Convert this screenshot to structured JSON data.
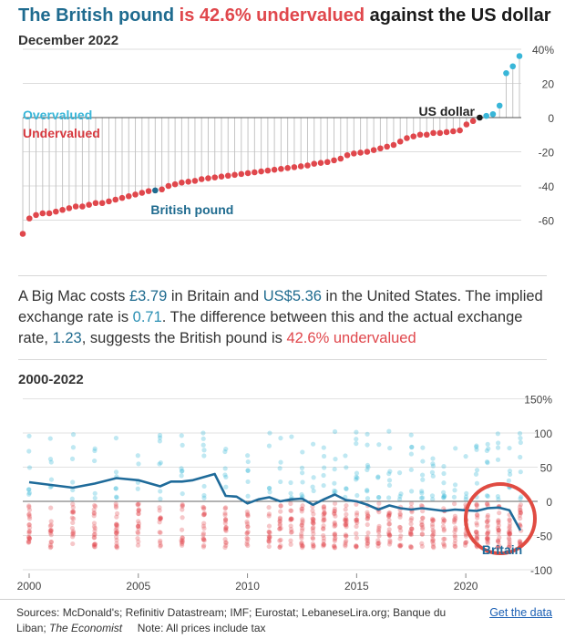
{
  "header": {
    "title_part1": "The British pound",
    "title_part2": "is 42.6% undervalued",
    "title_part3": "against the US dollar",
    "subtitle": "December 2022"
  },
  "description": {
    "p1": "A Big Mac costs ",
    "price_uk": "£3.79",
    "p2": " in Britain and ",
    "price_us": "US$5.36",
    "p3": " in the United States. The implied exchange rate is ",
    "implied_rate": "0.71",
    "p4": ". The difference between this and the actual exchange rate, ",
    "actual_rate": "1.23",
    "p5": ", suggests the British pound is ",
    "valuation": "42.6% undervalued"
  },
  "footer": {
    "sources_text": "Sources: McDonald's; Refinitiv Datastream; IMF; Eurostat; LebaneseLira.org; Banque du Liban; ",
    "economist": "The Economist",
    "note": "Note: All prices include tax",
    "get_data": "Get the data"
  },
  "colors": {
    "over": "#39b6d8",
    "under": "#e0474c",
    "highlight": "#1f6b8f",
    "us": "#1a1a1a",
    "over_label": "#39b6d8",
    "under_label": "#d7393f",
    "britain_line": "#1f6b9a",
    "circle": "#e04b42"
  },
  "chart_data": [
    {
      "type": "scatter",
      "title": "December 2022",
      "ylim": [
        -70,
        45
      ],
      "yticks": [
        {
          "value": 40,
          "label": "40%"
        },
        {
          "value": 20,
          "label": "20"
        },
        {
          "value": 0,
          "label": "0"
        },
        {
          "value": -20,
          "label": "-20"
        },
        {
          "value": -40,
          "label": "-40"
        },
        {
          "value": -60,
          "label": "-60"
        }
      ],
      "grid": true,
      "labels": {
        "overvalued": "Overvalued",
        "undervalued": "Undervalued",
        "us": "US dollar",
        "britain": "British pound"
      },
      "values": [
        -68,
        -59,
        -57,
        -56,
        -56,
        -55,
        -54,
        -53,
        -52,
        -52,
        -51,
        -50,
        -50,
        -49,
        -48,
        -47,
        -46,
        -45,
        -44,
        -43,
        -42.6,
        -42,
        -40,
        -39,
        -38,
        -37.5,
        -37,
        -36,
        -35.5,
        -35,
        -34.5,
        -34,
        -33.5,
        -33,
        -32.5,
        -32,
        -31.5,
        -31,
        -30.5,
        -30,
        -29.5,
        -29,
        -28.5,
        -28,
        -27,
        -26.5,
        -26,
        -25,
        -24,
        -22,
        -21,
        -20.5,
        -20,
        -19,
        -18,
        -17,
        -16,
        -14,
        -12,
        -11,
        -10,
        -10,
        -9,
        -9,
        -8.5,
        -8,
        -7.5,
        -4,
        -2,
        0,
        1,
        2,
        7,
        26,
        30,
        36
      ],
      "britain_index": 20,
      "us_index": 69
    },
    {
      "type": "line",
      "title": "2000-2022",
      "ylim": [
        -110,
        155
      ],
      "yticks": [
        {
          "value": 150,
          "label": "150%"
        },
        {
          "value": 100,
          "label": "100"
        },
        {
          "value": 50,
          "label": "50"
        },
        {
          "value": 0,
          "label": "0"
        },
        {
          "value": -50,
          "label": "-50"
        },
        {
          "value": -100,
          "label": "-100"
        }
      ],
      "xlim": [
        2000,
        2023
      ],
      "xticks": [
        2000,
        2005,
        2010,
        2015,
        2020
      ],
      "annotation": "Britain",
      "britain_series": {
        "name": "Britain",
        "x": [
          2000,
          2001,
          2002,
          2003,
          2004,
          2005,
          2006,
          2006.5,
          2007,
          2007.5,
          2008.5,
          2009,
          2009.5,
          2010,
          2010.5,
          2011,
          2011.5,
          2012,
          2012.5,
          2013,
          2013.5,
          2014,
          2014.5,
          2015,
          2015.5,
          2016,
          2016.5,
          2017,
          2017.5,
          2018,
          2018.5,
          2019,
          2019.5,
          2020,
          2020.5,
          2021,
          2021.5,
          2022,
          2022.5
        ],
        "y": [
          28,
          24,
          20,
          26,
          34,
          31,
          22,
          29,
          29,
          31,
          40,
          8,
          7,
          -3,
          3,
          6,
          0,
          3,
          4,
          -5,
          3,
          10,
          2,
          0,
          -5,
          -12,
          -6,
          -10,
          -12,
          -10,
          -12,
          -14,
          -12,
          -13,
          -14,
          -10,
          -9,
          -13,
          -42.6
        ]
      },
      "distribution_note": "Other currencies shown as faint dots for each survey year"
    }
  ]
}
